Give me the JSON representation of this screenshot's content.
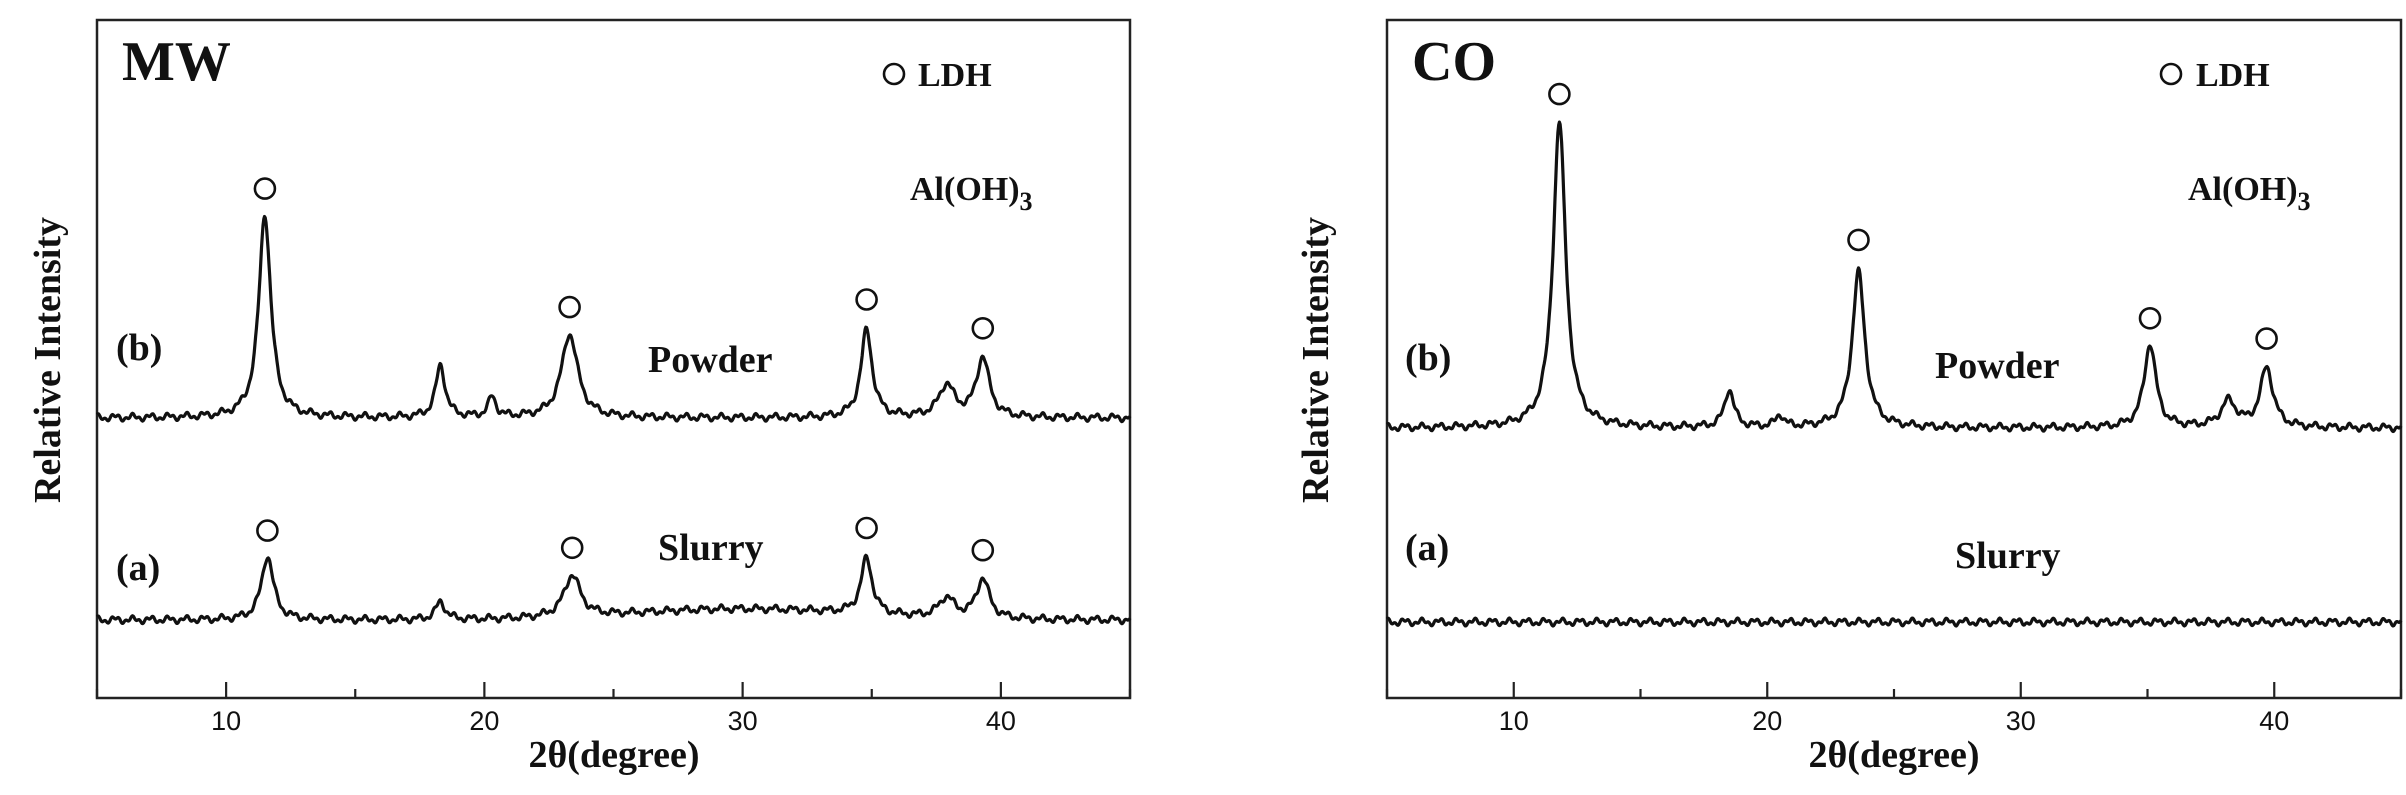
{
  "chart_data": [
    {
      "type": "line",
      "panel_label": "MW",
      "xlabel": "2θ(degree)",
      "ylabel": "Relative Intensity",
      "xlim": [
        5,
        45
      ],
      "xticks": [
        10,
        20,
        30,
        40
      ],
      "y_ticks_labeled": false,
      "grid": false,
      "legend": {
        "placement": "top-right",
        "entries": [
          {
            "symbol": "open-circle",
            "label": "LDH"
          },
          {
            "symbol": "none",
            "label": "Al(OH)",
            "subscript": "3"
          }
        ]
      },
      "series": [
        {
          "name": "Powder",
          "tag": "(b)",
          "baseline": 0.5,
          "peaks": [
            {
              "x": 11.5,
              "h": 10.2,
              "w": 0.28,
              "marker": true
            },
            {
              "x": 18.3,
              "h": 2.6,
              "w": 0.22
            },
            {
              "x": 20.3,
              "h": 1.0,
              "w": 0.18
            },
            {
              "x": 23.3,
              "h": 4.2,
              "w": 0.38,
              "marker": true
            },
            {
              "x": 34.8,
              "h": 4.4,
              "w": 0.26,
              "marker": true
            },
            {
              "x": 37.9,
              "h": 1.6,
              "w": 0.36
            },
            {
              "x": 39.3,
              "h": 3.0,
              "w": 0.3,
              "marker": true
            }
          ]
        },
        {
          "name": "Slurry",
          "tag": "(a)",
          "baseline": 0.4,
          "peaks": [
            {
              "x": 11.6,
              "h": 3.2,
              "w": 0.28,
              "marker": true
            },
            {
              "x": 18.3,
              "h": 0.9,
              "w": 0.22
            },
            {
              "x": 23.4,
              "h": 2.1,
              "w": 0.38,
              "marker": true
            },
            {
              "x": 34.8,
              "h": 2.8,
              "w": 0.26,
              "marker": true
            },
            {
              "x": 37.9,
              "h": 1.0,
              "w": 0.36
            },
            {
              "x": 39.3,
              "h": 2.0,
              "w": 0.3,
              "marker": true
            }
          ],
          "hump": {
            "x": 30,
            "h": 0.55,
            "w": 6
          }
        }
      ]
    },
    {
      "type": "line",
      "panel_label": "CO",
      "xlabel": "2θ(degree)",
      "ylabel": "Relative Intensity",
      "xlim": [
        5,
        45
      ],
      "xticks": [
        10,
        20,
        30,
        40
      ],
      "y_ticks_labeled": false,
      "grid": false,
      "legend": {
        "placement": "top-right",
        "entries": [
          {
            "symbol": "open-circle",
            "label": "LDH"
          },
          {
            "symbol": "none",
            "label": "Al(OH)",
            "subscript": "3"
          }
        ]
      },
      "series": [
        {
          "name": "Powder",
          "tag": "(b)",
          "baseline": 0.5,
          "peaks": [
            {
              "x": 11.8,
              "h": 15.3,
              "w": 0.3,
              "marker": true
            },
            {
              "x": 18.5,
              "h": 1.9,
              "w": 0.22
            },
            {
              "x": 20.5,
              "h": 0.6,
              "w": 0.18
            },
            {
              "x": 23.6,
              "h": 7.8,
              "w": 0.3,
              "marker": true
            },
            {
              "x": 35.1,
              "h": 4.2,
              "w": 0.28,
              "marker": true
            },
            {
              "x": 38.2,
              "h": 1.3,
              "w": 0.36
            },
            {
              "x": 39.7,
              "h": 3.0,
              "w": 0.3,
              "marker": true
            }
          ]
        },
        {
          "name": "Slurry",
          "tag": "(a)",
          "baseline": 0.0,
          "peaks": []
        }
      ]
    }
  ]
}
